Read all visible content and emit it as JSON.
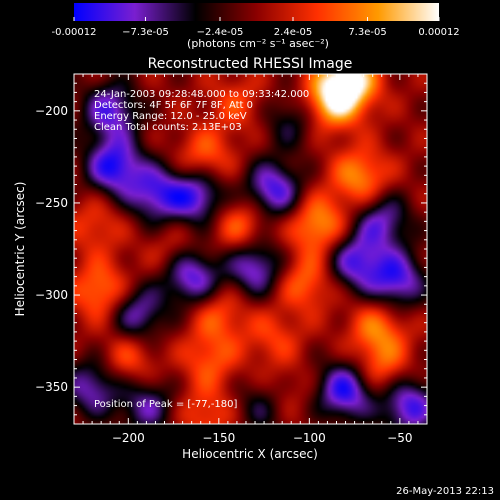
{
  "chart_data": {
    "type": "heatmap",
    "title": "Reconstructed RHESSI Image",
    "xlabel": "Heliocentric X (arcsec)",
    "ylabel": "Heliocentric Y (arcsec)",
    "xlim": [
      -230,
      -35
    ],
    "ylim": [
      -370,
      -180
    ],
    "x_ticks": [
      -200,
      -150,
      -100,
      -50
    ],
    "y_ticks": [
      -350,
      -300,
      -250,
      -200
    ],
    "x_tick_labels": [
      "−200",
      "−150",
      "−100",
      "−50"
    ],
    "y_tick_labels": [
      "−350",
      "−300",
      "−250",
      "−200"
    ],
    "colorbar": {
      "range": [
        -0.00012,
        0.00012
      ],
      "tick_labels": [
        "-0.00012",
        "−7.3e-05",
        "−2.4e-05",
        "2.4e-05",
        "7.3e-05",
        "0.00012"
      ],
      "tick_values": [
        -0.00012,
        -7.3e-05,
        -2.4e-05,
        2.4e-05,
        7.3e-05,
        0.00012
      ],
      "unit_label": "(photons cm⁻² s⁻¹ asec⁻²)",
      "colors": [
        "#0000ff",
        "#7a1fd0",
        "#000000",
        "#8b0000",
        "#ff3000",
        "#ff9a00",
        "#ffffff"
      ]
    },
    "annotations": [
      "24-Jan-2003 09:28:48.000 to 09:33:42.000",
      "Detectors: 4F 5F 6F 7F 8F, Att 0",
      "Energy Range: 12.0 - 25.0 keV",
      "Clean    Total counts: 2.13E+03"
    ],
    "peak_label": "Position of Peak = [-77,-180]",
    "peak": {
      "x": -77,
      "y": -180
    },
    "features": [
      {
        "x": -78,
        "y": -184,
        "value": 0.00012
      },
      {
        "x": -88,
        "y": -195,
        "value": 9e-05
      },
      {
        "x": -72,
        "y": -236,
        "value": 7.5e-05
      },
      {
        "x": -95,
        "y": -262,
        "value": 8e-05
      },
      {
        "x": -215,
        "y": -298,
        "value": 7e-05
      },
      {
        "x": -102,
        "y": -293,
        "value": 6e-05
      },
      {
        "x": -60,
        "y": -340,
        "value": 5.5e-05
      },
      {
        "x": -62,
        "y": -318,
        "value": 6.5e-05
      },
      {
        "x": -158,
        "y": -226,
        "value": 6e-05
      },
      {
        "x": -138,
        "y": -262,
        "value": 6e-05
      },
      {
        "x": -155,
        "y": -335,
        "value": 5e-05
      },
      {
        "x": -120,
        "y": -323,
        "value": 4e-05
      },
      {
        "x": -150,
        "y": -310,
        "value": 5e-05
      },
      {
        "x": -200,
        "y": -335,
        "value": 5e-05
      },
      {
        "x": -157,
        "y": -365,
        "value": 4.5e-05
      },
      {
        "x": -116,
        "y": -355,
        "value": 3.5e-05
      },
      {
        "x": -218,
        "y": -262,
        "value": 4e-05
      },
      {
        "x": -175,
        "y": -276,
        "value": 3e-05
      },
      {
        "x": -140,
        "y": -196,
        "value": 4e-05
      },
      {
        "x": -208,
        "y": -230,
        "value": -0.00011
      },
      {
        "x": -185,
        "y": -245,
        "value": -9e-05
      },
      {
        "x": -162,
        "y": -246,
        "value": -0.0001
      },
      {
        "x": -120,
        "y": -243,
        "value": -0.0001
      },
      {
        "x": -130,
        "y": -285,
        "value": -9e-05
      },
      {
        "x": -165,
        "y": -290,
        "value": -0.0001
      },
      {
        "x": -195,
        "y": -310,
        "value": -8e-05
      },
      {
        "x": -75,
        "y": -282,
        "value": -9e-05
      },
      {
        "x": -52,
        "y": -292,
        "value": -0.0001
      },
      {
        "x": -60,
        "y": -260,
        "value": -8e-05
      },
      {
        "x": -80,
        "y": -352,
        "value": -0.00011
      },
      {
        "x": -45,
        "y": -360,
        "value": -0.0001
      },
      {
        "x": -190,
        "y": -360,
        "value": -7e-05
      },
      {
        "x": -210,
        "y": -200,
        "value": -9e-05
      },
      {
        "x": -110,
        "y": -205,
        "value": -5e-05
      },
      {
        "x": -220,
        "y": -350,
        "value": -8e-05
      },
      {
        "x": -125,
        "y": -360,
        "value": -6e-05
      }
    ]
  },
  "footer": {
    "timestamp": "26-May-2013 22:13"
  }
}
